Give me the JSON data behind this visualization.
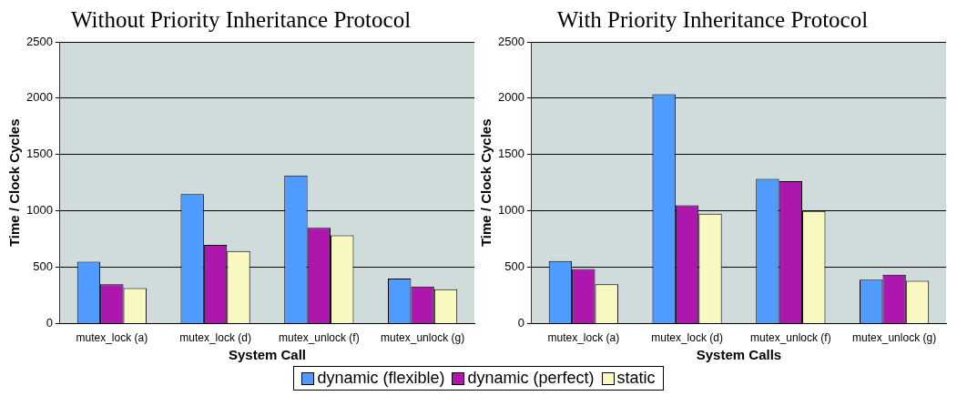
{
  "chart_data": [
    {
      "type": "bar",
      "title": "Without Priority Inheritance Protocol",
      "xlabel": "System Call",
      "ylabel": "Time / Clock Cycles",
      "categories": [
        "mutex_lock (a)",
        "mutex_lock (d)",
        "mutex_unlock (f)",
        "mutex_unlock (g)"
      ],
      "series": [
        {
          "name": "dynamic (flexible)",
          "color": "#4f9bff",
          "values": [
            550,
            1150,
            1315,
            400
          ]
        },
        {
          "name": "dynamic (perfect)",
          "color": "#ad17ad",
          "values": [
            350,
            700,
            850,
            330
          ]
        },
        {
          "name": "static",
          "color": "#f8f8c0",
          "values": [
            315,
            645,
            785,
            305
          ]
        }
      ],
      "ylim": [
        0,
        2500
      ],
      "yticks": [
        0,
        500,
        1000,
        1500,
        2000,
        2500
      ],
      "grid": "y",
      "legend": "bottom"
    },
    {
      "type": "bar",
      "title": "With Priority Inheritance Protocol",
      "xlabel": "System Calls",
      "ylabel": "Time / Clock Cycles",
      "categories": [
        "mutex_lock (a)",
        "mutex_lock (d)",
        "mutex_unlock (f)",
        "mutex_unlock (g)"
      ],
      "series": [
        {
          "name": "dynamic (flexible)",
          "color": "#4f9bff",
          "values": [
            555,
            2035,
            1285,
            390
          ]
        },
        {
          "name": "dynamic (perfect)",
          "color": "#ad17ad",
          "values": [
            485,
            1050,
            1265,
            435
          ]
        },
        {
          "name": "static",
          "color": "#f8f8c0",
          "values": [
            350,
            975,
            1000,
            380
          ]
        }
      ],
      "ylim": [
        0,
        2500
      ],
      "yticks": [
        0,
        500,
        1000,
        1500,
        2000,
        2500
      ],
      "grid": "y",
      "legend": "bottom"
    }
  ]
}
